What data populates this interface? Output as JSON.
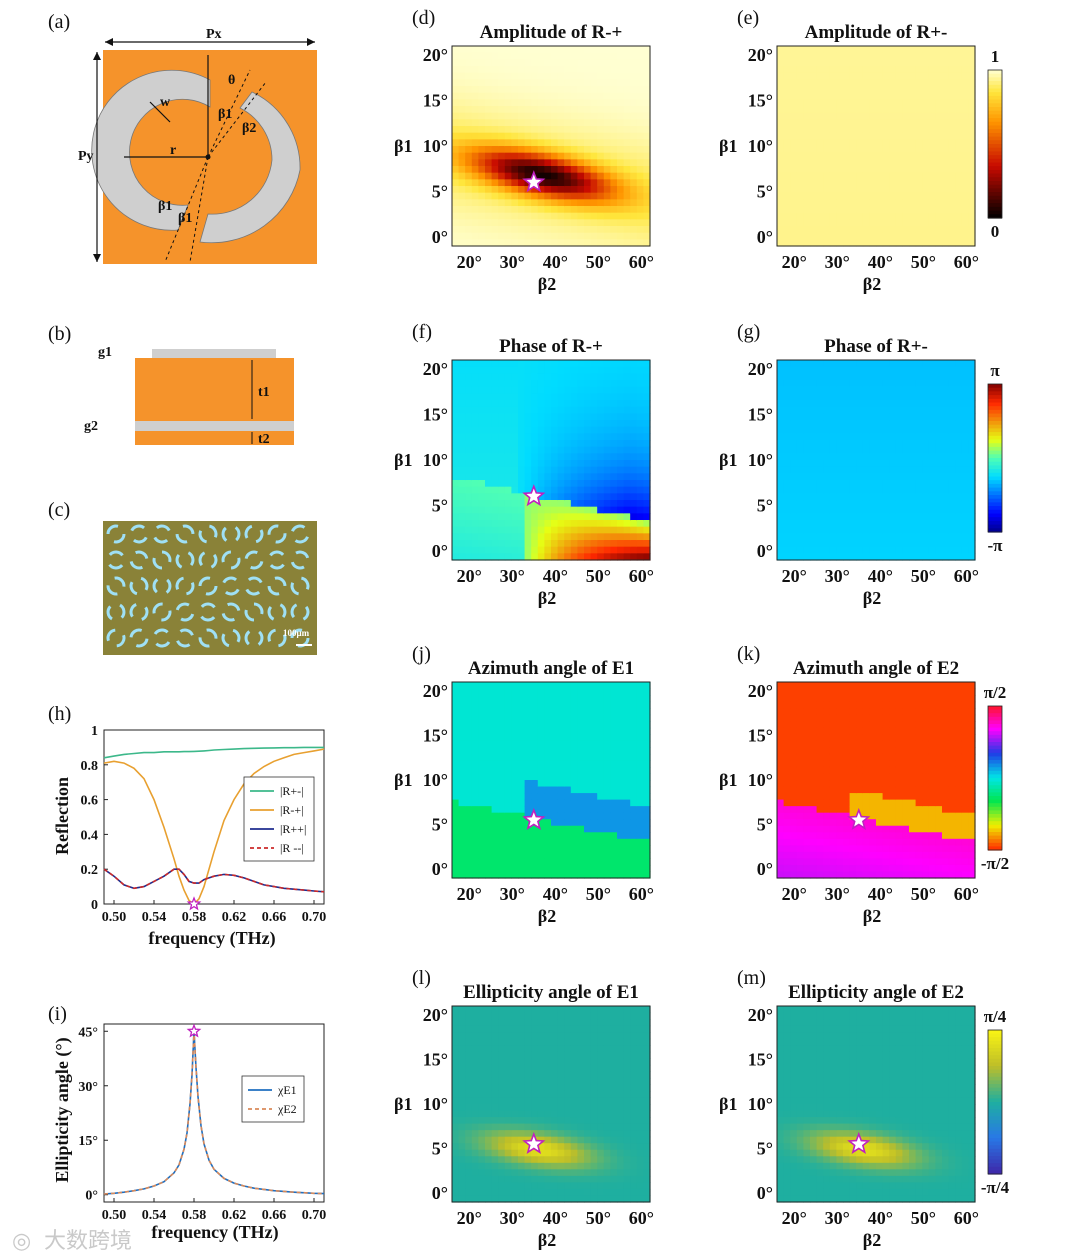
{
  "figure": {
    "panel_a": {
      "label": "(a)",
      "px": "Px",
      "py": "Py",
      "w": "w",
      "r": "r",
      "theta": "θ",
      "beta1": "β1",
      "beta2": "β2"
    },
    "panel_b": {
      "label": "(b)",
      "g1": "g1",
      "g2": "g2",
      "t1": "t1",
      "t2": "t2"
    },
    "panel_c": {
      "label": "(c)",
      "scale": "100μm"
    },
    "watermark": "大数跨境",
    "colors": {
      "orange": "#f5932b",
      "gray": "#cfcfcf",
      "star_edge": "#c020c0",
      "star_fill": "#ffffff"
    }
  },
  "chart_data": [
    {
      "id": "h",
      "label": "(h)",
      "type": "line",
      "title": "",
      "xlabel": "frequency (THz)",
      "ylabel": "Reflection",
      "xlim": [
        0.49,
        0.71
      ],
      "ylim": [
        0,
        1
      ],
      "xticks": [
        "0.50",
        "0.54",
        "0.58",
        "0.62",
        "0.66",
        "0.70"
      ],
      "yticks": [
        "0",
        "0.2",
        "0.4",
        "0.6",
        "0.8",
        "1"
      ],
      "x": [
        0.49,
        0.5,
        0.51,
        0.52,
        0.53,
        0.54,
        0.55,
        0.56,
        0.565,
        0.57,
        0.575,
        0.58,
        0.585,
        0.59,
        0.595,
        0.6,
        0.61,
        0.62,
        0.63,
        0.64,
        0.65,
        0.66,
        0.67,
        0.68,
        0.69,
        0.7,
        0.71
      ],
      "series": [
        {
          "name": "|R+-|",
          "color": "#3cb88a",
          "dash": "",
          "values": [
            0.84,
            0.85,
            0.86,
            0.865,
            0.87,
            0.87,
            0.875,
            0.875,
            0.875,
            0.876,
            0.876,
            0.877,
            0.878,
            0.88,
            0.882,
            0.885,
            0.888,
            0.89,
            0.893,
            0.895,
            0.896,
            0.897,
            0.898,
            0.898,
            0.9,
            0.9,
            0.9
          ]
        },
        {
          "name": "|R-+|",
          "color": "#e8a030",
          "dash": "",
          "values": [
            0.81,
            0.82,
            0.81,
            0.78,
            0.72,
            0.6,
            0.44,
            0.26,
            0.16,
            0.08,
            0.02,
            0.0,
            0.03,
            0.1,
            0.2,
            0.3,
            0.48,
            0.6,
            0.69,
            0.75,
            0.79,
            0.82,
            0.84,
            0.86,
            0.87,
            0.88,
            0.89
          ]
        },
        {
          "name": "|R++|",
          "color": "#1f2d8f",
          "dash": "",
          "values": [
            0.2,
            0.16,
            0.11,
            0.09,
            0.1,
            0.13,
            0.16,
            0.2,
            0.2,
            0.17,
            0.13,
            0.12,
            0.12,
            0.14,
            0.15,
            0.16,
            0.17,
            0.165,
            0.15,
            0.13,
            0.11,
            0.1,
            0.09,
            0.085,
            0.08,
            0.075,
            0.07
          ]
        },
        {
          "name": "|R --|",
          "color": "#cc2a2a",
          "dash": "4 3",
          "values": [
            0.2,
            0.16,
            0.11,
            0.09,
            0.1,
            0.13,
            0.16,
            0.2,
            0.2,
            0.17,
            0.13,
            0.12,
            0.12,
            0.14,
            0.15,
            0.16,
            0.17,
            0.165,
            0.15,
            0.13,
            0.11,
            0.1,
            0.09,
            0.085,
            0.08,
            0.075,
            0.07
          ]
        }
      ],
      "marker": {
        "x": 0.58,
        "y": 0.0
      }
    },
    {
      "id": "i",
      "label": "(i)",
      "type": "line",
      "title": "",
      "xlabel": "frequency (THz)",
      "ylabel": "Ellipticity angle (°)",
      "xlim": [
        0.49,
        0.71
      ],
      "ylim": [
        -2,
        47
      ],
      "xticks": [
        "0.50",
        "0.54",
        "0.58",
        "0.62",
        "0.66",
        "0.70"
      ],
      "yticks": [
        "0°",
        "15°",
        "30°",
        "45°"
      ],
      "x": [
        0.49,
        0.5,
        0.51,
        0.52,
        0.53,
        0.54,
        0.55,
        0.56,
        0.565,
        0.57,
        0.573,
        0.576,
        0.578,
        0.58,
        0.582,
        0.584,
        0.587,
        0.59,
        0.595,
        0.6,
        0.61,
        0.62,
        0.63,
        0.64,
        0.66,
        0.68,
        0.7,
        0.71
      ],
      "series": [
        {
          "name": "χE1",
          "color": "#1f6fc0",
          "dash": "",
          "values": [
            0.2,
            0.4,
            0.7,
            1.1,
            1.6,
            2.4,
            3.6,
            6.0,
            8.2,
            12.5,
            17.0,
            25.0,
            33.0,
            45.0,
            35.0,
            27.0,
            19.0,
            14.0,
            9.5,
            7.0,
            4.5,
            3.2,
            2.4,
            1.8,
            1.1,
            0.7,
            0.4,
            0.3
          ]
        },
        {
          "name": "χE2",
          "color": "#d98a5a",
          "dash": "4 3",
          "values": [
            0.2,
            0.4,
            0.7,
            1.1,
            1.6,
            2.4,
            3.6,
            6.0,
            8.2,
            12.5,
            17.0,
            25.0,
            33.0,
            45.0,
            35.0,
            27.0,
            19.0,
            14.0,
            9.5,
            7.0,
            4.5,
            3.2,
            2.4,
            1.8,
            1.1,
            0.7,
            0.4,
            0.3
          ]
        }
      ],
      "marker": {
        "x": 0.58,
        "y": 45
      }
    },
    {
      "id": "d",
      "label": "(d)",
      "type": "heatmap",
      "title": "Amplitude of R-+",
      "xlabel": "β2",
      "ylabel": "β1",
      "quantity": "amp_dip",
      "colormap": "hot",
      "xticks": [
        "20°",
        "30°",
        "40°",
        "50°",
        "60°"
      ],
      "yticks": [
        "0°",
        "5°",
        "10°",
        "15°",
        "20°"
      ],
      "xlim": [
        16,
        62
      ],
      "ylim": [
        -1,
        21
      ],
      "star": {
        "x": 35,
        "y": 6
      }
    },
    {
      "id": "e",
      "label": "(e)",
      "type": "heatmap",
      "title": "Amplitude of R+-",
      "xlabel": "β2",
      "ylabel": "β1",
      "quantity": "flat_amp",
      "colormap": "hot",
      "xticks": [
        "20°",
        "30°",
        "40°",
        "50°",
        "60°"
      ],
      "yticks": [
        "0°",
        "5°",
        "10°",
        "15°",
        "20°"
      ],
      "xlim": [
        16,
        62
      ],
      "ylim": [
        -1,
        21
      ],
      "colorbar": {
        "max": "1",
        "min": "0"
      }
    },
    {
      "id": "f",
      "label": "(f)",
      "type": "heatmap",
      "title": "Phase of R-+",
      "xlabel": "β2",
      "ylabel": "β1",
      "quantity": "phase_split",
      "colormap": "jet",
      "xticks": [
        "20°",
        "30°",
        "40°",
        "50°",
        "60°"
      ],
      "yticks": [
        "0°",
        "5°",
        "10°",
        "15°",
        "20°"
      ],
      "xlim": [
        16,
        62
      ],
      "ylim": [
        -1,
        21
      ],
      "star": {
        "x": 35,
        "y": 6
      }
    },
    {
      "id": "g",
      "label": "(g)",
      "type": "heatmap",
      "title": "Phase of R+-",
      "xlabel": "β2",
      "ylabel": "β1",
      "quantity": "flat_phase",
      "colormap": "jet",
      "xticks": [
        "20°",
        "30°",
        "40°",
        "50°",
        "60°"
      ],
      "yticks": [
        "0°",
        "5°",
        "10°",
        "15°",
        "20°"
      ],
      "xlim": [
        16,
        62
      ],
      "ylim": [
        -1,
        21
      ],
      "colorbar": {
        "max": "π",
        "min": "-π"
      }
    },
    {
      "id": "j",
      "label": "(j)",
      "type": "heatmap",
      "title": "Azimuth angle of E1",
      "xlabel": "β2",
      "ylabel": "β1",
      "quantity": "azi1",
      "colormap": "hsv",
      "xticks": [
        "20°",
        "30°",
        "40°",
        "50°",
        "60°"
      ],
      "yticks": [
        "0°",
        "5°",
        "10°",
        "15°",
        "20°"
      ],
      "xlim": [
        16,
        62
      ],
      "ylim": [
        -1,
        21
      ],
      "star": {
        "x": 35,
        "y": 5.5
      }
    },
    {
      "id": "k",
      "label": "(k)",
      "type": "heatmap",
      "title": "Azimuth angle of E2",
      "xlabel": "β2",
      "ylabel": "β1",
      "quantity": "azi2",
      "colormap": "hsv",
      "xticks": [
        "20°",
        "30°",
        "40°",
        "50°",
        "60°"
      ],
      "yticks": [
        "0°",
        "5°",
        "10°",
        "15°",
        "20°"
      ],
      "xlim": [
        16,
        62
      ],
      "ylim": [
        -1,
        21
      ],
      "star": {
        "x": 35,
        "y": 5.5
      },
      "colorbar": {
        "max": "π/2",
        "min": "-π/2"
      }
    },
    {
      "id": "l",
      "label": "(l)",
      "type": "heatmap",
      "title": "Ellipticity angle of E1",
      "xlabel": "β2",
      "ylabel": "β1",
      "quantity": "ell",
      "colormap": "parula",
      "xticks": [
        "20°",
        "30°",
        "40°",
        "50°",
        "60°"
      ],
      "yticks": [
        "0°",
        "5°",
        "10°",
        "15°",
        "20°"
      ],
      "xlim": [
        16,
        62
      ],
      "ylim": [
        -1,
        21
      ],
      "star": {
        "x": 35,
        "y": 5.5
      }
    },
    {
      "id": "m",
      "label": "(m)",
      "type": "heatmap",
      "title": "Ellipticity angle of E2",
      "xlabel": "β2",
      "ylabel": "β1",
      "quantity": "ell",
      "colormap": "parula",
      "xticks": [
        "20°",
        "30°",
        "40°",
        "50°",
        "60°"
      ],
      "yticks": [
        "0°",
        "5°",
        "10°",
        "15°",
        "20°"
      ],
      "xlim": [
        16,
        62
      ],
      "ylim": [
        -1,
        21
      ],
      "star": {
        "x": 35,
        "y": 5.5
      },
      "colorbar": {
        "max": "π/4",
        "min": "-π/4"
      }
    }
  ]
}
